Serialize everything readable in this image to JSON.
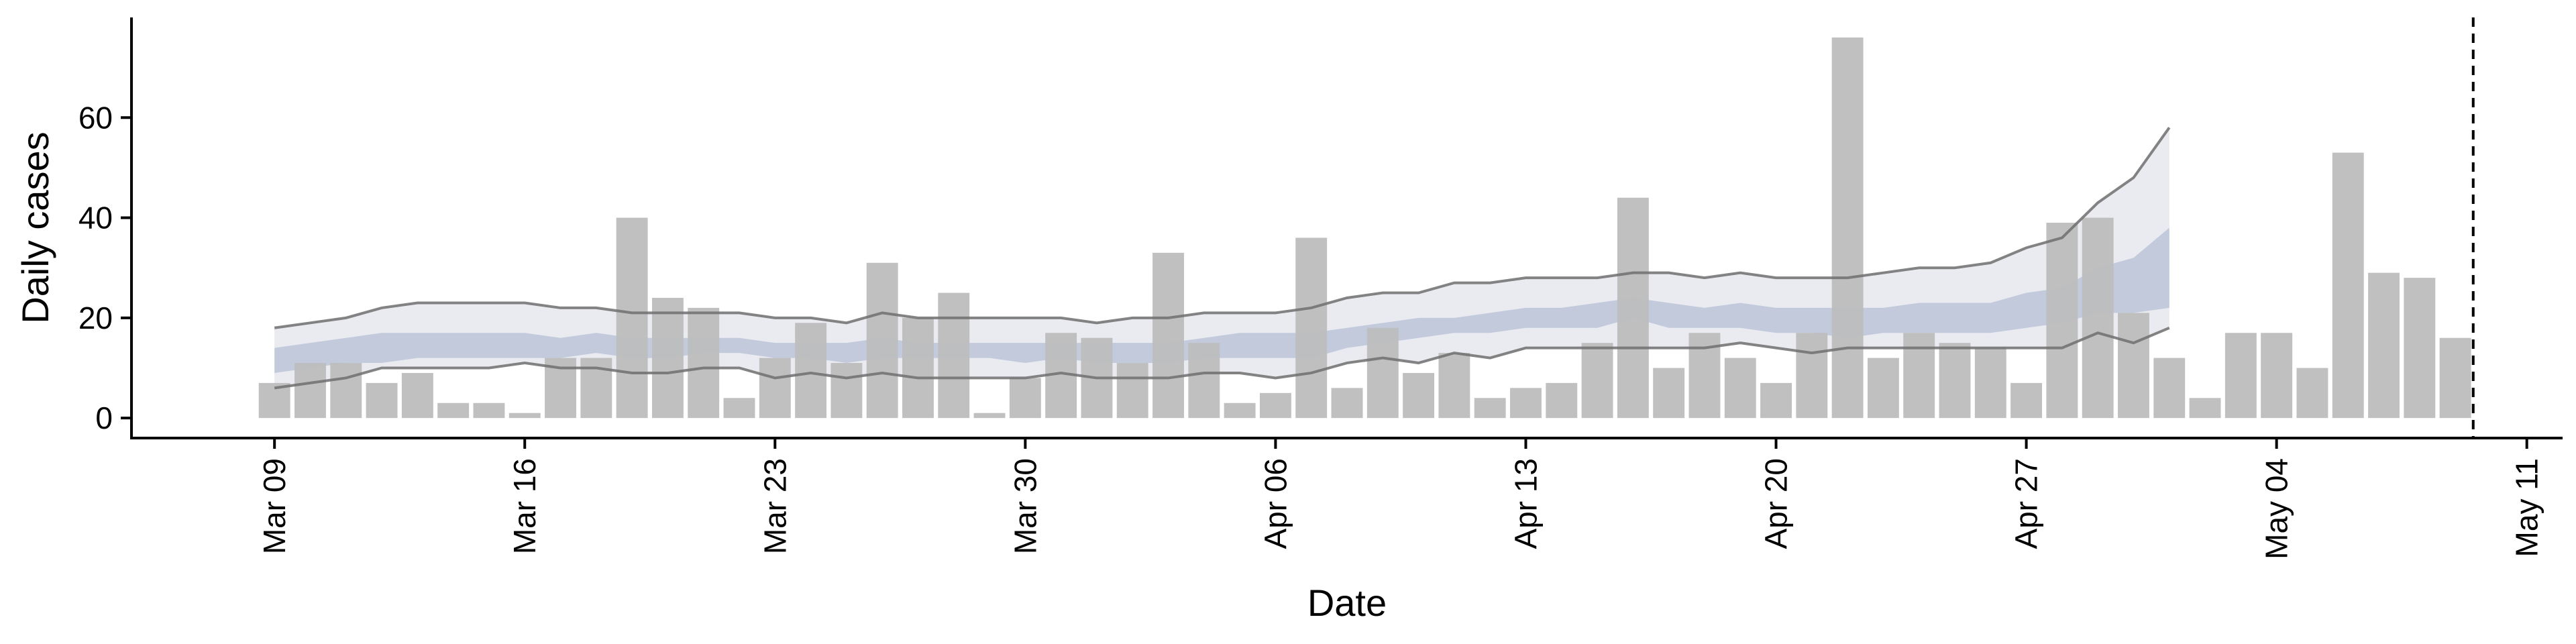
{
  "chart_data": {
    "type": "bar",
    "xlabel": "Date",
    "ylabel": "Daily cases",
    "ylim": [
      -4,
      80
    ],
    "yticks": [
      0,
      20,
      40,
      60
    ],
    "x_tick_labels": [
      "Mar 09",
      "Mar 16",
      "Mar 23",
      "Mar 30",
      "Apr 06",
      "Apr 13",
      "Apr 20",
      "Apr 27",
      "May 04",
      "May 11"
    ],
    "x_tick_dates": [
      "2020-03-09",
      "2020-03-16",
      "2020-03-23",
      "2020-03-30",
      "2020-04-06",
      "2020-04-13",
      "2020-04-20",
      "2020-04-27",
      "2020-05-04",
      "2020-05-11"
    ],
    "xlim": [
      "2020-03-05",
      "2020-05-12"
    ],
    "vline_date": "2020-05-09T12:00",
    "grid": false,
    "bar_color": "#bdbdbd",
    "bars": {
      "dates": [
        "2020-03-09",
        "2020-03-10",
        "2020-03-11",
        "2020-03-12",
        "2020-03-13",
        "2020-03-14",
        "2020-03-15",
        "2020-03-16",
        "2020-03-17",
        "2020-03-18",
        "2020-03-19",
        "2020-03-20",
        "2020-03-21",
        "2020-03-22",
        "2020-03-23",
        "2020-03-24",
        "2020-03-25",
        "2020-03-26",
        "2020-03-27",
        "2020-03-28",
        "2020-03-29",
        "2020-03-30",
        "2020-03-31",
        "2020-04-01",
        "2020-04-02",
        "2020-04-03",
        "2020-04-04",
        "2020-04-05",
        "2020-04-06",
        "2020-04-07",
        "2020-04-08",
        "2020-04-09",
        "2020-04-10",
        "2020-04-11",
        "2020-04-12",
        "2020-04-13",
        "2020-04-14",
        "2020-04-15",
        "2020-04-16",
        "2020-04-17",
        "2020-04-18",
        "2020-04-19",
        "2020-04-20",
        "2020-04-21",
        "2020-04-22",
        "2020-04-23",
        "2020-04-24",
        "2020-04-25",
        "2020-04-26",
        "2020-04-27",
        "2020-04-28",
        "2020-04-29",
        "2020-04-30",
        "2020-05-01",
        "2020-05-02",
        "2020-05-03",
        "2020-05-04",
        "2020-05-05",
        "2020-05-06",
        "2020-05-07",
        "2020-05-08",
        "2020-05-09"
      ],
      "values": [
        7,
        11,
        11,
        7,
        9,
        3,
        3,
        1,
        12,
        12,
        40,
        24,
        22,
        4,
        12,
        19,
        11,
        31,
        20,
        25,
        1,
        8,
        17,
        16,
        11,
        33,
        15,
        3,
        5,
        36,
        6,
        18,
        9,
        13,
        4,
        6,
        7,
        15,
        44,
        10,
        17,
        12,
        7,
        17,
        76,
        12,
        17,
        15,
        14,
        7,
        39,
        40,
        21,
        12,
        4,
        17,
        17,
        10,
        53,
        29,
        28,
        16
      ]
    },
    "forecast": {
      "dates": [
        "2020-03-09",
        "2020-03-10",
        "2020-03-11",
        "2020-03-12",
        "2020-03-13",
        "2020-03-14",
        "2020-03-15",
        "2020-03-16",
        "2020-03-17",
        "2020-03-18",
        "2020-03-19",
        "2020-03-20",
        "2020-03-21",
        "2020-03-22",
        "2020-03-23",
        "2020-03-24",
        "2020-03-25",
        "2020-03-26",
        "2020-03-27",
        "2020-03-28",
        "2020-03-29",
        "2020-03-30",
        "2020-03-31",
        "2020-04-01",
        "2020-04-02",
        "2020-04-03",
        "2020-04-04",
        "2020-04-05",
        "2020-04-06",
        "2020-04-07",
        "2020-04-08",
        "2020-04-09",
        "2020-04-10",
        "2020-04-11",
        "2020-04-12",
        "2020-04-13",
        "2020-04-14",
        "2020-04-15",
        "2020-04-16",
        "2020-04-17",
        "2020-04-18",
        "2020-04-19",
        "2020-04-20",
        "2020-04-21",
        "2020-04-22",
        "2020-04-23",
        "2020-04-24",
        "2020-04-25",
        "2020-04-26",
        "2020-04-27",
        "2020-04-28",
        "2020-04-29",
        "2020-04-30",
        "2020-05-01"
      ],
      "outer_upper": [
        18,
        19,
        20,
        22,
        23,
        23,
        23,
        23,
        22,
        22,
        21,
        21,
        21,
        21,
        20,
        20,
        19,
        21,
        20,
        20,
        20,
        20,
        20,
        19,
        20,
        20,
        21,
        21,
        21,
        22,
        24,
        25,
        25,
        27,
        27,
        28,
        28,
        28,
        29,
        29,
        28,
        29,
        28,
        28,
        28,
        29,
        30,
        30,
        31,
        34,
        36,
        43,
        48,
        58
      ],
      "inner_upper": [
        14,
        15,
        16,
        17,
        17,
        17,
        17,
        17,
        16,
        17,
        16,
        16,
        16,
        16,
        15,
        15,
        15,
        16,
        15,
        15,
        15,
        15,
        15,
        15,
        15,
        15,
        16,
        17,
        17,
        17,
        18,
        19,
        20,
        20,
        21,
        22,
        22,
        23,
        24,
        23,
        22,
        23,
        22,
        22,
        22,
        22,
        23,
        23,
        23,
        25,
        26,
        30,
        32,
        38
      ],
      "inner_lower": [
        9,
        10,
        11,
        11,
        12,
        12,
        12,
        12,
        12,
        13,
        12,
        12,
        13,
        13,
        12,
        12,
        11,
        12,
        12,
        12,
        12,
        11,
        12,
        11,
        11,
        11,
        12,
        12,
        12,
        12,
        14,
        15,
        16,
        17,
        17,
        18,
        18,
        18,
        20,
        18,
        18,
        18,
        17,
        17,
        16,
        17,
        17,
        17,
        17,
        18,
        19,
        21,
        21,
        22
      ],
      "outer_lower": [
        6,
        7,
        8,
        10,
        10,
        10,
        10,
        11,
        10,
        10,
        9,
        9,
        10,
        10,
        8,
        9,
        8,
        9,
        8,
        8,
        8,
        8,
        9,
        8,
        8,
        8,
        9,
        9,
        8,
        9,
        11,
        12,
        11,
        13,
        12,
        14,
        14,
        14,
        14,
        14,
        14,
        15,
        14,
        13,
        14,
        14,
        14,
        14,
        14,
        14,
        14,
        17,
        15,
        18
      ],
      "outer_color": "#e3e6ee",
      "inner_color": "#a8b4cf",
      "line_color": "#6e6e6e"
    }
  }
}
